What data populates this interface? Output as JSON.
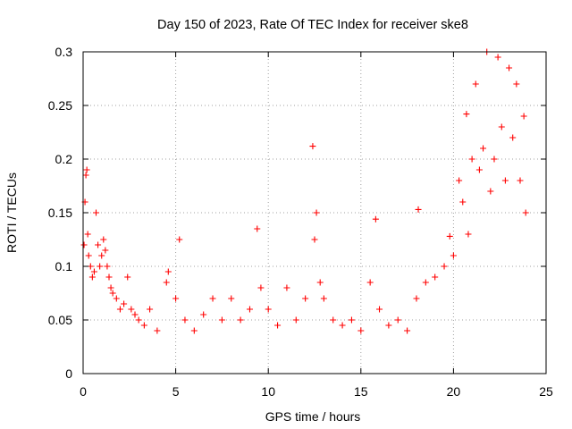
{
  "chart_data": {
    "type": "scatter",
    "title": "Day 150 of 2023, Rate Of TEC Index for receiver ske8",
    "xlabel": "GPS time / hours",
    "ylabel": "ROTI / TECUs",
    "xlim": [
      0,
      25
    ],
    "ylim": [
      0,
      0.3
    ],
    "x_ticks": [
      0,
      5,
      10,
      15,
      20,
      25
    ],
    "x_tick_labels": [
      "0",
      "5",
      "10",
      "15",
      "20",
      "25"
    ],
    "y_ticks": [
      0,
      0.05,
      0.1,
      0.15,
      0.2,
      0.25,
      0.3
    ],
    "y_tick_labels": [
      "0",
      "0.05",
      "0.1",
      "0.15",
      "0.2",
      "0.25",
      "0.3"
    ],
    "grid": true,
    "legend": "none",
    "marker": "plus",
    "color": "#ff0000",
    "series": [
      {
        "x": [
          0.05,
          0.1,
          0.15,
          0.2,
          0.25,
          0.3,
          0.4,
          0.5,
          0.6,
          0.7,
          0.8,
          0.9,
          1.0,
          1.1,
          1.2,
          1.3,
          1.4,
          1.5,
          1.6,
          1.8,
          2.0,
          2.2,
          2.4,
          2.6,
          2.8,
          3.0,
          3.3,
          3.6,
          4.0,
          4.5,
          4.6,
          5.0,
          5.2,
          5.5,
          6.0,
          6.5,
          7.0,
          7.5,
          8.0,
          8.5,
          9.0,
          9.4,
          9.6,
          10.0,
          10.5,
          11.0,
          11.5,
          12.0,
          12.4,
          12.5,
          12.6,
          12.8,
          13.0,
          13.5,
          14.0,
          14.5,
          15.0,
          15.5,
          15.8,
          16.0,
          16.5,
          17.0,
          17.5,
          18.0,
          18.1,
          18.5,
          19.0,
          19.5,
          19.8,
          20.0,
          20.3,
          20.5,
          20.7,
          20.8,
          21.0,
          21.2,
          21.4,
          21.6,
          21.8,
          22.0,
          22.2,
          22.4,
          22.6,
          22.8,
          23.0,
          23.2,
          23.4,
          23.6,
          23.8,
          23.9
        ],
        "y": [
          0.12,
          0.16,
          0.185,
          0.19,
          0.13,
          0.11,
          0.1,
          0.09,
          0.095,
          0.15,
          0.12,
          0.1,
          0.11,
          0.125,
          0.115,
          0.1,
          0.09,
          0.08,
          0.075,
          0.07,
          0.06,
          0.065,
          0.09,
          0.06,
          0.055,
          0.05,
          0.045,
          0.06,
          0.04,
          0.085,
          0.095,
          0.07,
          0.125,
          0.05,
          0.04,
          0.055,
          0.07,
          0.05,
          0.07,
          0.05,
          0.06,
          0.135,
          0.08,
          0.06,
          0.045,
          0.08,
          0.05,
          0.07,
          0.212,
          0.125,
          0.15,
          0.085,
          0.07,
          0.05,
          0.045,
          0.05,
          0.04,
          0.085,
          0.144,
          0.06,
          0.045,
          0.05,
          0.04,
          0.07,
          0.153,
          0.085,
          0.09,
          0.1,
          0.128,
          0.11,
          0.18,
          0.16,
          0.242,
          0.13,
          0.2,
          0.27,
          0.19,
          0.21,
          0.3,
          0.17,
          0.2,
          0.295,
          0.23,
          0.18,
          0.285,
          0.22,
          0.27,
          0.18,
          0.24,
          0.15
        ]
      }
    ]
  }
}
